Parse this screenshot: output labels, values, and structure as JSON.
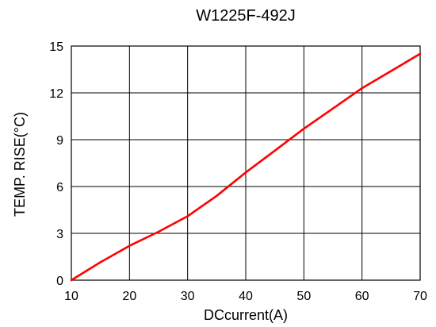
{
  "chart_data": {
    "type": "line",
    "title": "W1225F-492J",
    "xlabel": "DCcurrent(A)",
    "ylabel": "TEMP. RISE(°C)",
    "xlim": [
      10,
      70
    ],
    "ylim": [
      0,
      15
    ],
    "xticks": [
      10,
      20,
      30,
      40,
      50,
      60,
      70
    ],
    "yticks": [
      0,
      3,
      6,
      9,
      12,
      15
    ],
    "grid": true,
    "series": [
      {
        "color": "#ff0000",
        "x": [
          10,
          15,
          20,
          25,
          30,
          35,
          40,
          45,
          50,
          55,
          60,
          65,
          70
        ],
        "y": [
          0,
          1.15,
          2.2,
          3.1,
          4.1,
          5.4,
          6.9,
          8.3,
          9.7,
          11.0,
          12.3,
          13.4,
          14.5
        ]
      }
    ]
  }
}
